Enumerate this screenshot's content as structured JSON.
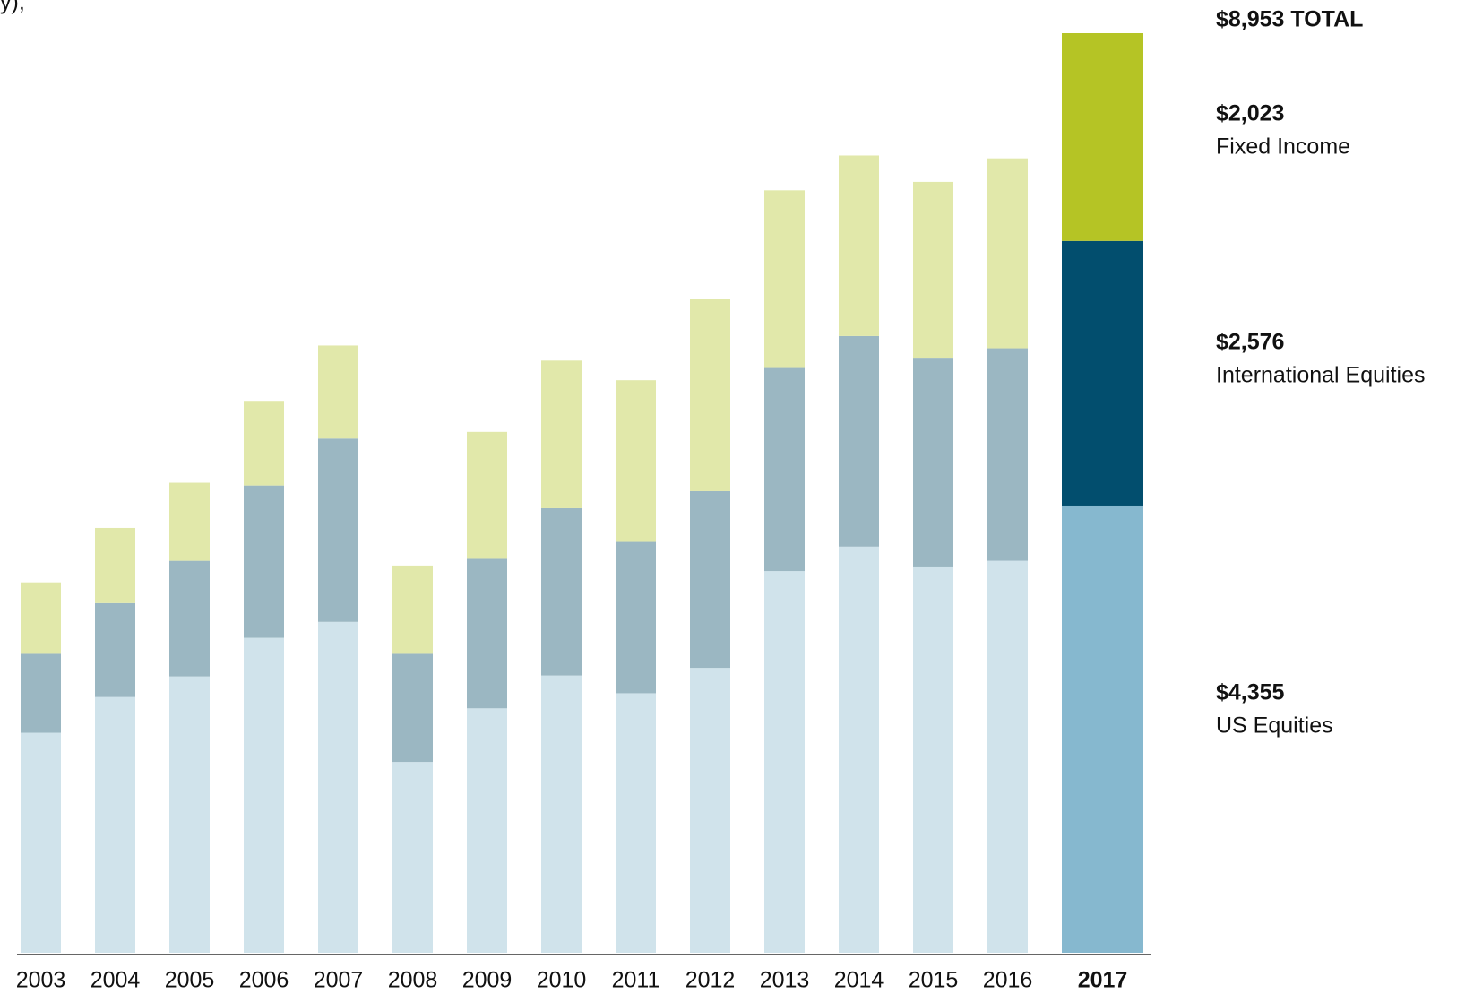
{
  "chart_data": {
    "type": "stacked_bar",
    "subtitle": "y),",
    "categories": [
      "2003",
      "2004",
      "2005",
      "2006",
      "2007",
      "2008",
      "2009",
      "2010",
      "2011",
      "2012",
      "2013",
      "2014",
      "2015",
      "2016",
      "2017"
    ],
    "highlight_category": "2017",
    "series": [
      {
        "name": "US Equities",
        "color": "#d0e3eb",
        "highlight_color": "#86b8cf",
        "values": [
          2142,
          2490,
          2691,
          3067,
          3222,
          1858,
          2380,
          2700,
          2527,
          2774,
          3717,
          3955,
          3753,
          3817,
          4355
        ],
        "value_labels": [
          null,
          null,
          null,
          null,
          null,
          null,
          null,
          null,
          null,
          null,
          null,
          null,
          null,
          null,
          "$4,355"
        ]
      },
      {
        "name": "International Equities",
        "color": "#9bb7c2",
        "highlight_color": "#024e6e",
        "values": [
          769,
          915,
          1126,
          1483,
          1785,
          1053,
          1456,
          1629,
          1474,
          1721,
          1977,
          2050,
          2041,
          2069,
          2576
        ],
        "value_labels": [
          null,
          null,
          null,
          null,
          null,
          null,
          null,
          null,
          null,
          null,
          null,
          null,
          null,
          null,
          "$2,576"
        ]
      },
      {
        "name": "Fixed Income",
        "color": "#e1e8aa",
        "highlight_color": "#b5c425",
        "values": [
          696,
          732,
          760,
          824,
          906,
          860,
          1236,
          1437,
          1574,
          1867,
          1730,
          1758,
          1712,
          1849,
          2023
        ],
        "value_labels": [
          null,
          null,
          null,
          null,
          null,
          null,
          null,
          null,
          null,
          null,
          null,
          null,
          null,
          null,
          "$2,023"
        ]
      }
    ],
    "total": {
      "value": 8953,
      "label": "$8,953 TOTAL"
    }
  }
}
